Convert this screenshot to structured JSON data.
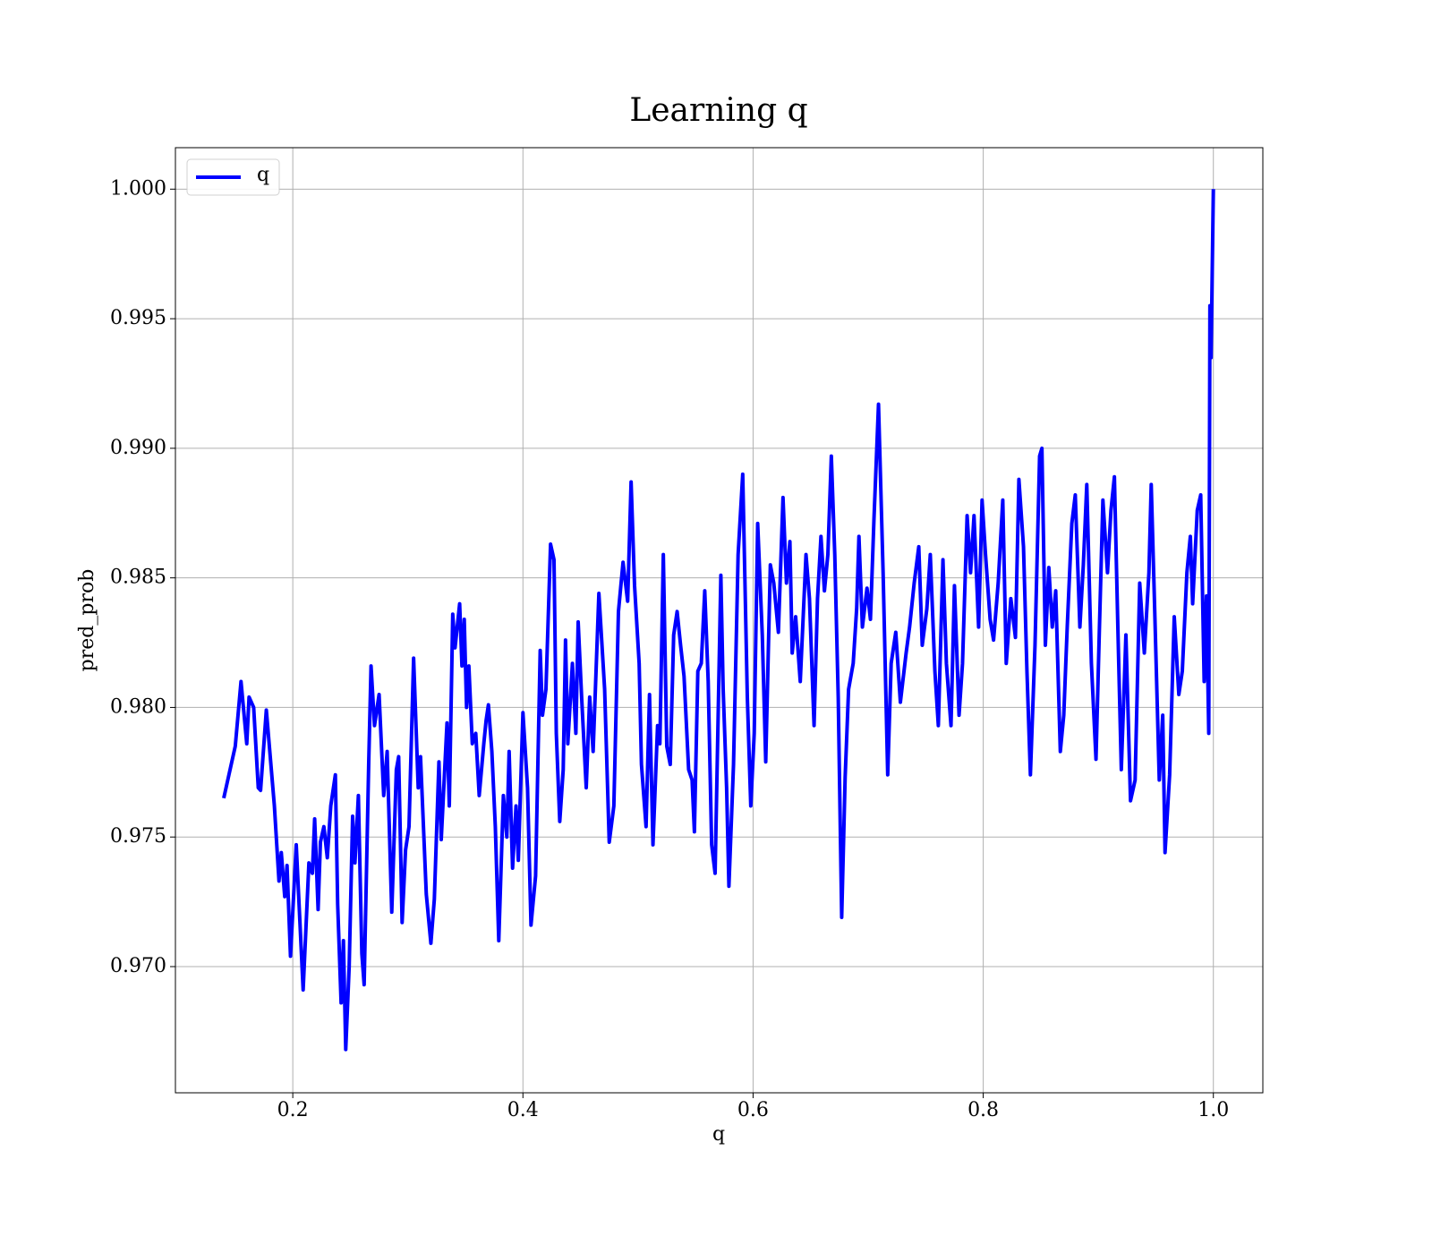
{
  "chart_data": {
    "type": "line",
    "title": "Learning q",
    "x_label": "q",
    "y_label": "pred_prob",
    "xlim": [
      0.098,
      1.043
    ],
    "ylim": [
      0.96513,
      1.0016
    ],
    "xticks": [
      {
        "value": 0.2,
        "label": "0.2"
      },
      {
        "value": 0.4,
        "label": "0.4"
      },
      {
        "value": 0.6,
        "label": "0.6"
      },
      {
        "value": 0.8,
        "label": "0.8"
      },
      {
        "value": 1.0,
        "label": "1.0"
      }
    ],
    "yticks": [
      {
        "value": 0.97,
        "label": "0.970"
      },
      {
        "value": 0.975,
        "label": "0.975"
      },
      {
        "value": 0.98,
        "label": "0.980"
      },
      {
        "value": 0.985,
        "label": "0.985"
      },
      {
        "value": 0.99,
        "label": "0.990"
      },
      {
        "value": 0.995,
        "label": "0.995"
      },
      {
        "value": 1.0,
        "label": "1.000"
      }
    ],
    "grid": true,
    "legend": "upper left",
    "x": [
      0.14,
      0.15,
      0.155,
      0.16,
      0.162,
      0.166,
      0.17,
      0.172,
      0.177,
      0.184,
      0.188,
      0.19,
      0.193,
      0.195,
      0.198,
      0.203,
      0.209,
      0.214,
      0.217,
      0.219,
      0.222,
      0.224,
      0.227,
      0.23,
      0.233,
      0.237,
      0.239,
      0.242,
      0.244,
      0.246,
      0.249,
      0.252,
      0.254,
      0.257,
      0.26,
      0.262,
      0.266,
      0.268,
      0.271,
      0.275,
      0.279,
      0.282,
      0.286,
      0.29,
      0.292,
      0.295,
      0.298,
      0.301,
      0.305,
      0.309,
      0.311,
      0.316,
      0.32,
      0.323,
      0.327,
      0.329,
      0.334,
      0.336,
      0.339,
      0.341,
      0.345,
      0.347,
      0.349,
      0.351,
      0.353,
      0.356,
      0.359,
      0.362,
      0.366,
      0.368,
      0.37,
      0.373,
      0.376,
      0.379,
      0.383,
      0.386,
      0.388,
      0.391,
      0.394,
      0.396,
      0.4,
      0.404,
      0.407,
      0.411,
      0.415,
      0.417,
      0.42,
      0.424,
      0.427,
      0.429,
      0.432,
      0.435,
      0.437,
      0.439,
      0.443,
      0.446,
      0.448,
      0.451,
      0.455,
      0.458,
      0.461,
      0.466,
      0.471,
      0.475,
      0.479,
      0.483,
      0.487,
      0.491,
      0.494,
      0.497,
      0.501,
      0.503,
      0.507,
      0.51,
      0.513,
      0.517,
      0.519,
      0.522,
      0.525,
      0.528,
      0.531,
      0.534,
      0.537,
      0.54,
      0.544,
      0.547,
      0.549,
      0.552,
      0.555,
      0.558,
      0.561,
      0.564,
      0.567,
      0.572,
      0.574,
      0.577,
      0.579,
      0.583,
      0.587,
      0.591,
      0.595,
      0.598,
      0.601,
      0.604,
      0.608,
      0.611,
      0.615,
      0.618,
      0.622,
      0.626,
      0.629,
      0.632,
      0.634,
      0.637,
      0.641,
      0.646,
      0.649,
      0.653,
      0.656,
      0.659,
      0.662,
      0.665,
      0.668,
      0.671,
      0.674,
      0.677,
      0.68,
      0.683,
      0.687,
      0.69,
      0.692,
      0.695,
      0.699,
      0.702,
      0.705,
      0.709,
      0.713,
      0.717,
      0.72,
      0.724,
      0.728,
      0.733,
      0.736,
      0.74,
      0.744,
      0.747,
      0.751,
      0.754,
      0.758,
      0.761,
      0.765,
      0.768,
      0.772,
      0.775,
      0.779,
      0.782,
      0.786,
      0.789,
      0.792,
      0.796,
      0.799,
      0.802,
      0.806,
      0.809,
      0.813,
      0.817,
      0.82,
      0.824,
      0.828,
      0.831,
      0.835,
      0.838,
      0.841,
      0.845,
      0.849,
      0.851,
      0.854,
      0.857,
      0.86,
      0.863,
      0.867,
      0.87,
      0.873,
      0.877,
      0.88,
      0.884,
      0.887,
      0.89,
      0.894,
      0.898,
      0.901,
      0.904,
      0.908,
      0.911,
      0.914,
      0.917,
      0.92,
      0.924,
      0.928,
      0.932,
      0.936,
      0.94,
      0.944,
      0.946,
      0.949,
      0.953,
      0.956,
      0.958,
      0.962,
      0.966,
      0.97,
      0.973,
      0.977,
      0.98,
      0.982,
      0.986,
      0.989,
      0.992,
      0.994,
      0.996,
      0.997,
      0.998,
      1.0
    ],
    "series": [
      {
        "name": "q",
        "color": "#0000ff",
        "values": [
          0.9765,
          0.9785,
          0.981,
          0.9786,
          0.9804,
          0.98,
          0.9769,
          0.9768,
          0.9799,
          0.9762,
          0.9733,
          0.9744,
          0.9727,
          0.9739,
          0.9704,
          0.9747,
          0.9691,
          0.974,
          0.9736,
          0.9757,
          0.9722,
          0.9748,
          0.9754,
          0.9742,
          0.9762,
          0.9774,
          0.9724,
          0.9686,
          0.971,
          0.9668,
          0.97,
          0.9758,
          0.974,
          0.9766,
          0.9705,
          0.9693,
          0.9779,
          0.9816,
          0.9793,
          0.9805,
          0.9766,
          0.9783,
          0.9721,
          0.9776,
          0.9781,
          0.9717,
          0.9745,
          0.9754,
          0.9819,
          0.9769,
          0.9781,
          0.9728,
          0.9709,
          0.9726,
          0.9779,
          0.9749,
          0.9794,
          0.9762,
          0.9836,
          0.9823,
          0.984,
          0.9816,
          0.9834,
          0.98,
          0.9816,
          0.9786,
          0.979,
          0.9766,
          0.9786,
          0.9795,
          0.9801,
          0.9783,
          0.9754,
          0.971,
          0.9766,
          0.975,
          0.9783,
          0.9738,
          0.9762,
          0.9741,
          0.9798,
          0.9769,
          0.9716,
          0.9735,
          0.9822,
          0.9797,
          0.9807,
          0.9863,
          0.9857,
          0.979,
          0.9756,
          0.9776,
          0.9826,
          0.9786,
          0.9817,
          0.979,
          0.9833,
          0.9804,
          0.9769,
          0.9804,
          0.9783,
          0.9844,
          0.9807,
          0.9748,
          0.9762,
          0.9837,
          0.9856,
          0.9841,
          0.9887,
          0.9847,
          0.9817,
          0.9778,
          0.9754,
          0.9805,
          0.9747,
          0.9793,
          0.9786,
          0.9859,
          0.9785,
          0.9778,
          0.9828,
          0.9837,
          0.9824,
          0.9812,
          0.9776,
          0.9772,
          0.9752,
          0.9814,
          0.9817,
          0.9845,
          0.981,
          0.9747,
          0.9736,
          0.9851,
          0.9807,
          0.9769,
          0.9731,
          0.9778,
          0.9859,
          0.989,
          0.9804,
          0.9762,
          0.979,
          0.9871,
          0.9828,
          0.9779,
          0.9855,
          0.9848,
          0.9829,
          0.9881,
          0.9848,
          0.9864,
          0.9821,
          0.9835,
          0.981,
          0.9859,
          0.9842,
          0.9793,
          0.9842,
          0.9866,
          0.9845,
          0.9859,
          0.9897,
          0.9859,
          0.9804,
          0.9719,
          0.9773,
          0.9807,
          0.9817,
          0.9838,
          0.9866,
          0.9831,
          0.9846,
          0.9834,
          0.9872,
          0.9917,
          0.9852,
          0.9774,
          0.9817,
          0.9829,
          0.9802,
          0.9821,
          0.9831,
          0.9848,
          0.9862,
          0.9824,
          0.9838,
          0.9859,
          0.9814,
          0.9793,
          0.9857,
          0.9817,
          0.9793,
          0.9847,
          0.9797,
          0.9817,
          0.9874,
          0.9852,
          0.9874,
          0.9831,
          0.988,
          0.9859,
          0.9834,
          0.9826,
          0.9848,
          0.988,
          0.9817,
          0.9842,
          0.9827,
          0.9888,
          0.9862,
          0.9814,
          0.9774,
          0.9824,
          0.9897,
          0.99,
          0.9824,
          0.9854,
          0.9831,
          0.9845,
          0.9783,
          0.9797,
          0.9831,
          0.9871,
          0.9882,
          0.9831,
          0.9855,
          0.9886,
          0.9817,
          0.978,
          0.9831,
          0.988,
          0.9852,
          0.9876,
          0.9889,
          0.9831,
          0.9776,
          0.9828,
          0.9764,
          0.9772,
          0.9848,
          0.9821,
          0.9852,
          0.9886,
          0.9838,
          0.9772,
          0.9797,
          0.9744,
          0.9774,
          0.9835,
          0.9805,
          0.9814,
          0.9852,
          0.9866,
          0.984,
          0.9876,
          0.9882,
          0.981,
          0.9843,
          0.979,
          0.9955,
          0.9935,
          1.0
        ]
      }
    ]
  }
}
